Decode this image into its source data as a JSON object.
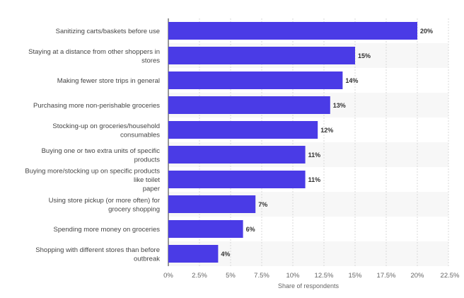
{
  "chart_data": {
    "type": "bar",
    "orientation": "horizontal",
    "categories": [
      [
        "Sanitizing carts/baskets before use"
      ],
      [
        "Staying at a distance from other shoppers in",
        "stores"
      ],
      [
        "Making fewer store trips in general"
      ],
      [
        "Purchasing more non-perishable groceries"
      ],
      [
        "Stocking-up on groceries/household",
        "consumables"
      ],
      [
        "Buying one or two extra units of specific",
        "products"
      ],
      [
        "Buying more/stocking up on specific products",
        "like toilet",
        "paper"
      ],
      [
        "Using store pickup (or more often) for",
        "grocery shopping"
      ],
      [
        "Spending more money on groceries"
      ],
      [
        "Shopping with different stores than before",
        "outbreak"
      ]
    ],
    "values": [
      20,
      15,
      14,
      13,
      12,
      11,
      11,
      7,
      6,
      4
    ],
    "value_labels": [
      "20%",
      "15%",
      "14%",
      "13%",
      "12%",
      "11%",
      "11%",
      "7%",
      "6%",
      "4%"
    ],
    "xlim": [
      0,
      22.5
    ],
    "ticks": [
      0,
      2.5,
      5,
      7.5,
      10,
      12.5,
      15,
      17.5,
      20,
      22.5
    ],
    "tick_labels": [
      "0%",
      "2.5%",
      "5%",
      "7.5%",
      "10%",
      "12.5%",
      "15%",
      "17.5%",
      "20%",
      "22.5%"
    ],
    "xlabel": "Share of respondents",
    "ylabel": "",
    "title": "",
    "grid": true,
    "bar_color": "#4a3be6",
    "alt_row_color": "#f7f7f7"
  }
}
